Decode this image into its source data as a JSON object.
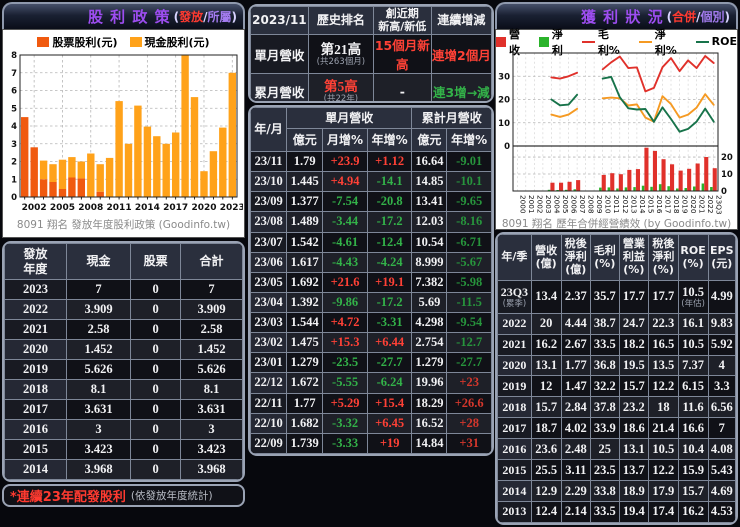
{
  "colors": {
    "up_red": "#ff4136",
    "down_green": "#33b249",
    "title_purple": "#9d4df0",
    "cash_orange": "#ffa21a",
    "stock_orange": "#f05a10"
  },
  "left_panel": {
    "title": "股 利 政 策",
    "sub_open": "(",
    "sub_active": "發放",
    "sub_sep": "/",
    "sub_alt": "所屬",
    "sub_close": ")",
    "caption": "8091 翔名 發放年度股利政策 (Goodinfo.tw)",
    "table": {
      "col_year": "發放\n年度",
      "col_cash": "現金",
      "col_stock": "股票",
      "col_total": "合計",
      "rows": [
        [
          "2023",
          "7",
          "0",
          "7"
        ],
        [
          "2022",
          "3.909",
          "0",
          "3.909"
        ],
        [
          "2021",
          "2.58",
          "0",
          "2.58"
        ],
        [
          "2020",
          "1.452",
          "0",
          "1.452"
        ],
        [
          "2019",
          "5.626",
          "0",
          "5.626"
        ],
        [
          "2018",
          "8.1",
          "0",
          "8.1"
        ],
        [
          "2017",
          "3.631",
          "0",
          "3.631"
        ],
        [
          "2016",
          "3",
          "0",
          "3"
        ],
        [
          "2015",
          "3.423",
          "0",
          "3.423"
        ],
        [
          "2014",
          "3.968",
          "0",
          "3.968"
        ]
      ]
    },
    "footnote": "*連續23年配發股利",
    "footnote_note": "(依發放年度統計)"
  },
  "middle_panel": {
    "summary": {
      "period": "2023/11",
      "col_rank": "歷史排名",
      "col_high": "創近期\n新高/新低",
      "col_streak": "連續增減",
      "rows": [
        {
          "label": "單月營收",
          "rank": "第21高",
          "rank_sub": "(共263個月)",
          "rank_red": false,
          "high": "15個月新高",
          "high_red": true,
          "streak": "連增2個月",
          "streak_dir": "up"
        },
        {
          "label": "累月營收",
          "rank": "第5高",
          "rank_sub": "(共22年)",
          "rank_red": true,
          "high": "-",
          "high_red": false,
          "streak": "連3增→減",
          "streak_dir": "down"
        }
      ]
    },
    "revenue_table": {
      "col_month": "年/月",
      "group_single": "單月營收",
      "group_cum": "累計月營收",
      "sub_headers": [
        "億元",
        "月增%",
        "年增%",
        "億元",
        "年增%"
      ],
      "rows": [
        [
          "23/11",
          "1.79",
          "+23.9",
          "+1.12",
          "16.64",
          "-9.01"
        ],
        [
          "23/10",
          "1.445",
          "+4.94",
          "-14.1",
          "14.85",
          "-10.1"
        ],
        [
          "23/09",
          "1.377",
          "-7.54",
          "-20.8",
          "13.41",
          "-9.65"
        ],
        [
          "23/08",
          "1.489",
          "-3.44",
          "-17.2",
          "12.03",
          "-8.16"
        ],
        [
          "23/07",
          "1.542",
          "-4.61",
          "-12.4",
          "10.54",
          "-6.71"
        ],
        [
          "23/06",
          "1.617",
          "-4.43",
          "-4.24",
          "8.999",
          "-5.67"
        ],
        [
          "23/05",
          "1.692",
          "+21.6",
          "+19.1",
          "7.382",
          "-5.98"
        ],
        [
          "23/04",
          "1.392",
          "-9.86",
          "-17.2",
          "5.69",
          "-11.5"
        ],
        [
          "23/03",
          "1.544",
          "+4.72",
          "-3.31",
          "4.298",
          "-9.54"
        ],
        [
          "23/02",
          "1.475",
          "+15.3",
          "+6.44",
          "2.754",
          "-12.7"
        ],
        [
          "23/01",
          "1.279",
          "-23.5",
          "-27.7",
          "1.279",
          "-27.7"
        ],
        [
          "22/12",
          "1.672",
          "-5.55",
          "-6.24",
          "19.96",
          "+23"
        ],
        [
          "22/11",
          "1.77",
          "+5.29",
          "+15.4",
          "18.29",
          "+26.6"
        ],
        [
          "22/10",
          "1.682",
          "-3.32",
          "+6.45",
          "16.52",
          "+28"
        ],
        [
          "22/09",
          "1.739",
          "-3.33",
          "+19",
          "14.84",
          "+31"
        ]
      ]
    }
  },
  "right_panel": {
    "title": "獲 利 狀 況",
    "sub_open": "(",
    "sub_active": "合併",
    "sub_sep": "/",
    "sub_alt": "個別",
    "sub_close": ")",
    "caption": "8091 翔名 歷年合併經營績效 (by Goodinfo.tw)",
    "profit_table": {
      "headers": [
        "年/季",
        "營收\n(億)",
        "稅後\n淨利\n(億)",
        "毛利\n(%)",
        "營業\n利益\n(%)",
        "稅後\n淨利\n(%)",
        "ROE\n(%)",
        "EPS\n(元)"
      ],
      "rows": [
        {
          "year": "23Q3",
          "year_sub": "(累季)",
          "rev": "13.4",
          "np": "2.37",
          "gm": "35.7",
          "oi": "17.7",
          "npm": "17.7",
          "roe": "10.5",
          "roe_sub": "(年估)",
          "eps": "4.99"
        },
        {
          "year": "2022",
          "rev": "20",
          "np": "4.44",
          "gm": "38.7",
          "oi": "24.7",
          "npm": "22.3",
          "roe": "16.1",
          "eps": "9.83"
        },
        {
          "year": "2021",
          "rev": "16.2",
          "np": "2.67",
          "gm": "33.5",
          "oi": "18.2",
          "npm": "16.5",
          "roe": "10.5",
          "eps": "5.92"
        },
        {
          "year": "2020",
          "rev": "13.1",
          "np": "1.77",
          "gm": "36.8",
          "oi": "19.5",
          "npm": "13.5",
          "roe": "7.37",
          "eps": "4"
        },
        {
          "year": "2019",
          "rev": "12",
          "np": "1.47",
          "gm": "32.2",
          "oi": "15.7",
          "npm": "12.2",
          "roe": "6.15",
          "eps": "3.3"
        },
        {
          "year": "2018",
          "rev": "15.7",
          "np": "2.84",
          "gm": "37.8",
          "oi": "23.2",
          "npm": "18",
          "roe": "11.6",
          "eps": "6.56"
        },
        {
          "year": "2017",
          "rev": "18.7",
          "np": "4.02",
          "gm": "33.9",
          "oi": "18.6",
          "npm": "21.4",
          "roe": "16.6",
          "eps": "7"
        },
        {
          "year": "2016",
          "rev": "23.6",
          "np": "2.48",
          "gm": "25",
          "oi": "13.1",
          "npm": "10.5",
          "roe": "10.4",
          "eps": "4.08"
        },
        {
          "year": "2015",
          "rev": "25.5",
          "np": "3.11",
          "gm": "23.5",
          "oi": "13.7",
          "npm": "12.2",
          "roe": "15.9",
          "eps": "5.43"
        },
        {
          "year": "2014",
          "rev": "12.9",
          "np": "2.29",
          "gm": "33.8",
          "oi": "18.9",
          "npm": "17.9",
          "roe": "15.7",
          "eps": "4.69"
        },
        {
          "year": "2013",
          "rev": "12.4",
          "np": "2.14",
          "gm": "33.5",
          "oi": "19.4",
          "npm": "17.4",
          "roe": "16.2",
          "eps": "4.53"
        }
      ]
    }
  },
  "chart_data": [
    {
      "type": "bar",
      "stacked": true,
      "title": "發放年度股利政策",
      "categories": [
        "2001",
        "2002",
        "2003",
        "2004",
        "2005",
        "2006",
        "2007",
        "2008",
        "2009",
        "2010",
        "2011",
        "2012",
        "2013",
        "2014",
        "2015",
        "2016",
        "2017",
        "2018",
        "2019",
        "2020",
        "2021",
        "2022",
        "2023"
      ],
      "series": [
        {
          "name": "股票股利(元)",
          "color": "#f05a10",
          "values": [
            4.5,
            2.8,
            1.0,
            0.85,
            0.45,
            1.1,
            1.05,
            0,
            0.3,
            0,
            0,
            0,
            0,
            0,
            0,
            0,
            0,
            0,
            0,
            0,
            0,
            0,
            0
          ]
        },
        {
          "name": "現金股利(元)",
          "color": "#ffa21a",
          "values": [
            0,
            0,
            1.05,
            1.0,
            1.65,
            1.15,
            0.95,
            2.45,
            1.55,
            2.2,
            5.4,
            3.0,
            5.15,
            3.968,
            3.423,
            3,
            3.631,
            8.1,
            5.626,
            1.452,
            2.58,
            3.909,
            7
          ]
        }
      ],
      "ylabel": "",
      "ylim": [
        0,
        8
      ],
      "yticks": [
        0,
        1,
        2,
        3,
        4,
        5,
        6,
        7,
        8
      ],
      "xtick_labels": [
        "2002",
        "2005",
        "2008",
        "2011",
        "2014",
        "2017",
        "2020",
        "2023"
      ],
      "grid": true,
      "legend_position": "top"
    },
    {
      "type": "combo",
      "title": "歷年合併經營績效",
      "categories": [
        "2000",
        "2001",
        "2002",
        "2003",
        "2004",
        "2005",
        "2006",
        "2007",
        "2008",
        "2009",
        "2010",
        "2011",
        "2012",
        "2013",
        "2014",
        "2015",
        "2016",
        "2017",
        "2018",
        "2019",
        "2020",
        "2021",
        "2022",
        "23Q3"
      ],
      "bars": [
        {
          "name": "營收",
          "color": "#e0312b",
          "axis": "right",
          "values": [
            0,
            0,
            0,
            0,
            4.9,
            4.9,
            5.4,
            6.4,
            0,
            0,
            9.5,
            10.5,
            9.9,
            12.4,
            12.9,
            25.5,
            23.6,
            18.7,
            15.7,
            12,
            13.1,
            16.2,
            20,
            13.4
          ]
        },
        {
          "name": "淨利",
          "color": "#2bb32b",
          "axis": "right",
          "values": [
            0,
            0,
            0,
            0,
            0.7,
            0.6,
            0.7,
            1,
            0,
            0,
            2,
            2.1,
            1.5,
            2.14,
            2.29,
            3.11,
            2.48,
            4.02,
            2.84,
            1.47,
            1.77,
            2.67,
            4.44,
            2.37
          ]
        }
      ],
      "lines": [
        {
          "name": "毛利%",
          "color": "#e0312b",
          "axis": "left",
          "values": [
            null,
            null,
            null,
            null,
            29.5,
            29,
            30,
            31.5,
            null,
            null,
            33,
            36,
            38.5,
            33.5,
            33.8,
            23.5,
            25,
            33.9,
            37.8,
            32.2,
            36.8,
            33.5,
            38.7,
            35.7
          ]
        },
        {
          "name": "淨利%",
          "color": "#f59a23",
          "axis": "left",
          "values": [
            null,
            null,
            null,
            null,
            13.5,
            12.5,
            13.5,
            16,
            null,
            null,
            20.5,
            20.8,
            20.5,
            17.4,
            17.9,
            12.2,
            10.5,
            21.4,
            18,
            12.2,
            13.5,
            16.5,
            22.3,
            17.7
          ]
        },
        {
          "name": "ROE",
          "color": "#17734a",
          "axis": "left",
          "values": [
            null,
            null,
            null,
            null,
            20,
            17.5,
            17.8,
            22,
            null,
            null,
            29,
            29.7,
            21,
            16.2,
            15.7,
            15.9,
            10.4,
            16.6,
            11.6,
            6.15,
            7.37,
            10.5,
            16.1,
            10.5
          ]
        }
      ],
      "left_axis": {
        "ticks": [
          0,
          10,
          20,
          30
        ],
        "max": 40
      },
      "right_axis": {
        "ticks": [
          0,
          10,
          20
        ],
        "max": 26.5
      },
      "grid": true,
      "legend_position": "top"
    }
  ]
}
